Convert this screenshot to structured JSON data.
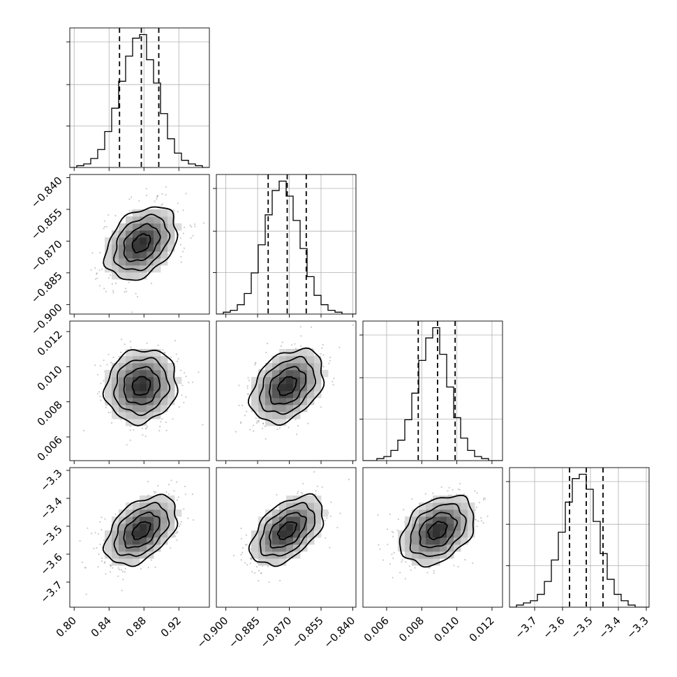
{
  "chart_data": {
    "type": "corner",
    "parameters": [
      {
        "range": [
          0.795,
          0.955
        ],
        "center": 0.877,
        "sd": 0.0205,
        "quantiles": [
          0.852,
          0.877,
          0.897
        ],
        "ticks": [
          0.8,
          0.84,
          0.88,
          0.92
        ],
        "tick_labels": [
          "0.80",
          "0.84",
          "0.88",
          "0.92"
        ]
      },
      {
        "range": [
          -0.9045,
          -0.8385
        ],
        "center": -0.871,
        "sd": 0.0086,
        "quantiles": [
          -0.88,
          -0.871,
          -0.862
        ],
        "ticks": [
          -0.9,
          -0.885,
          -0.87,
          -0.855,
          -0.84
        ],
        "tick_labels": [
          "−0.900",
          "−0.885",
          "−0.870",
          "−0.855",
          "−0.840"
        ]
      },
      {
        "range": [
          0.00465,
          0.0126
        ],
        "center": 0.0089,
        "sd": 0.00105,
        "quantiles": [
          0.0078,
          0.0089,
          0.0099
        ],
        "ticks": [
          0.006,
          0.008,
          0.01,
          0.012
        ],
        "tick_labels": [
          "0.006",
          "0.008",
          "0.010",
          "0.012"
        ]
      },
      {
        "range": [
          -3.79,
          -3.29
        ],
        "center": -3.515,
        "sd": 0.062,
        "quantiles": [
          -3.575,
          -3.515,
          -3.455
        ],
        "ticks": [
          -3.7,
          -3.6,
          -3.5,
          -3.4,
          -3.3
        ],
        "tick_labels": [
          "−3.7",
          "−3.6",
          "−3.5",
          "−3.4",
          "−3.3"
        ]
      }
    ],
    "histograms": [
      {
        "counts": [
          0,
          1,
          2,
          5,
          10,
          20,
          33,
          48,
          62,
          72,
          74,
          60,
          47,
          30,
          16,
          8,
          4,
          2,
          1,
          0
        ]
      },
      {
        "counts": [
          0,
          1,
          2,
          5,
          11,
          22,
          37,
          53,
          66,
          71,
          63,
          50,
          35,
          20,
          10,
          5,
          2,
          1,
          0,
          0
        ]
      },
      {
        "counts": [
          0,
          0,
          1,
          2,
          5,
          10,
          20,
          33,
          49,
          60,
          65,
          52,
          36,
          21,
          11,
          5,
          2,
          1,
          0,
          0
        ]
      },
      {
        "counts": [
          0,
          1,
          2,
          3,
          6,
          12,
          22,
          35,
          49,
          60,
          62,
          55,
          40,
          25,
          13,
          6,
          3,
          1,
          0,
          0
        ]
      }
    ],
    "correlations": {
      "1-0": 0.35,
      "2-0": 0.1,
      "2-1": 0.35,
      "3-0": 0.45,
      "3-1": 0.5,
      "3-2": 0.35
    },
    "xlabel": "",
    "ylabel": "",
    "title": ""
  }
}
